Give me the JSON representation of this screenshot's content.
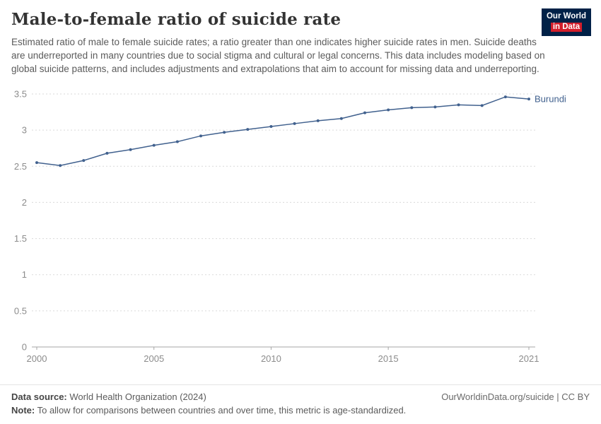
{
  "header": {
    "title": "Male-to-female ratio of suicide rate",
    "subtitle": "Estimated ratio of male to female suicide rates; a ratio greater than one indicates higher suicide rates in men. Suicide deaths are underreported in many countries due to social stigma and cultural or legal concerns. This data includes modeling based on global suicide patterns, and includes adjustments and extrapolations that aim to account for missing data and underreporting.",
    "logo": {
      "line1": "Our World",
      "line2": "in Data",
      "bg": "#002147",
      "accent": "#d21e2b"
    }
  },
  "chart_data": {
    "type": "line",
    "title": "Male-to-female ratio of suicide rate",
    "xlabel": "",
    "ylabel": "",
    "xlim": [
      2000,
      2021
    ],
    "ylim": [
      0,
      3.5
    ],
    "x_ticks": [
      2000,
      2005,
      2010,
      2015,
      2021
    ],
    "y_ticks": [
      0,
      0.5,
      1,
      1.5,
      2,
      2.5,
      3,
      3.5
    ],
    "grid": "horizontal-dashed",
    "legend_position": "end-of-line-label",
    "grid_color": "#dadada",
    "axis_color": "#a5a5a5",
    "tick_label_color": "#8c8c8c",
    "series": [
      {
        "name": "Burundi",
        "color": "#41618e",
        "x": [
          2000,
          2001,
          2002,
          2003,
          2004,
          2005,
          2006,
          2007,
          2008,
          2009,
          2010,
          2011,
          2012,
          2013,
          2014,
          2015,
          2016,
          2017,
          2018,
          2019,
          2020,
          2021
        ],
        "values": [
          2.55,
          2.51,
          2.58,
          2.68,
          2.73,
          2.79,
          2.84,
          2.92,
          2.97,
          3.01,
          3.05,
          3.09,
          3.13,
          3.16,
          3.24,
          3.28,
          3.31,
          3.32,
          3.35,
          3.34,
          3.46,
          3.43
        ]
      }
    ]
  },
  "footer": {
    "source_label": "Data source:",
    "source_value": " World Health Organization (2024)",
    "link": "OurWorldinData.org/suicide | CC BY",
    "note_label": "Note:",
    "note_value": " To allow for comparisons between countries and over time, this metric is age-standardized."
  }
}
